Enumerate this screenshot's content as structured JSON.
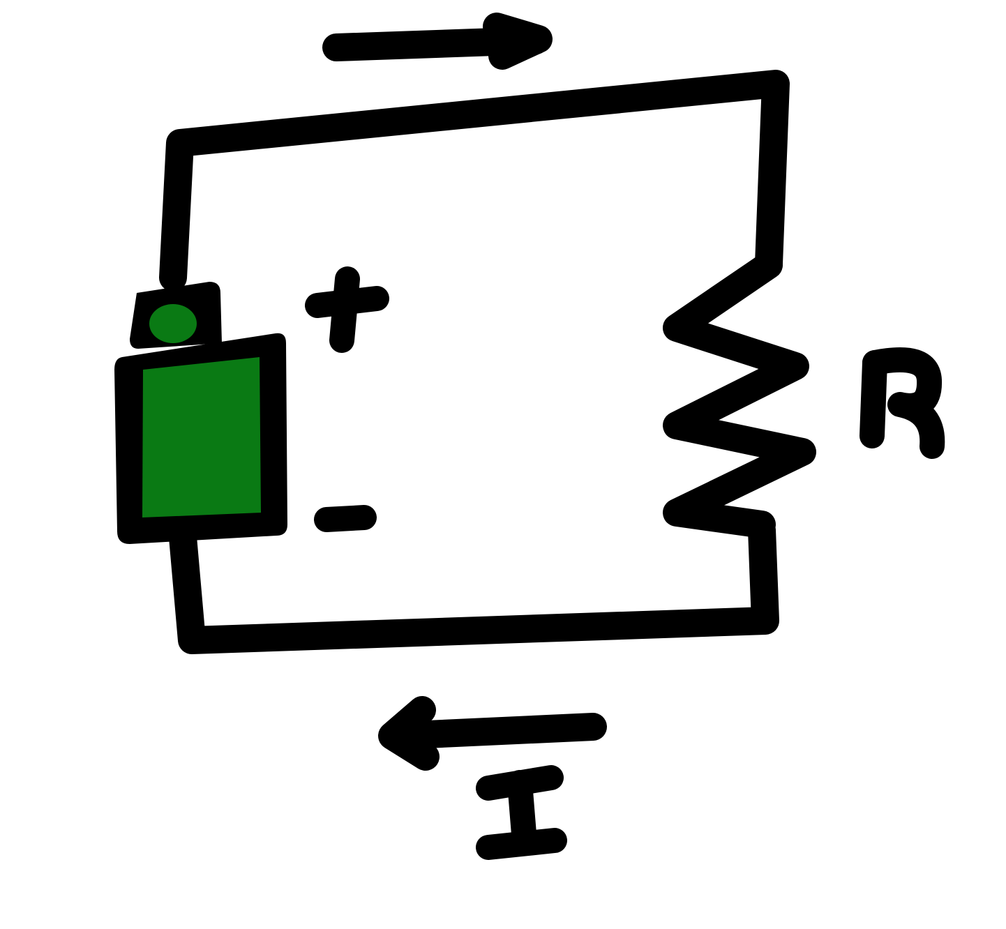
{
  "labels": {
    "plus": "+",
    "minus": "-",
    "resistor": "R",
    "current": "I"
  },
  "colors": {
    "ink": "#000000",
    "battery_fill": "#0a7a14",
    "background": "#ffffff"
  },
  "icons": {
    "battery": "battery-icon",
    "resistor": "resistor-zigzag-icon",
    "arrow_top": "arrow-right-icon",
    "arrow_bottom": "arrow-left-icon"
  }
}
